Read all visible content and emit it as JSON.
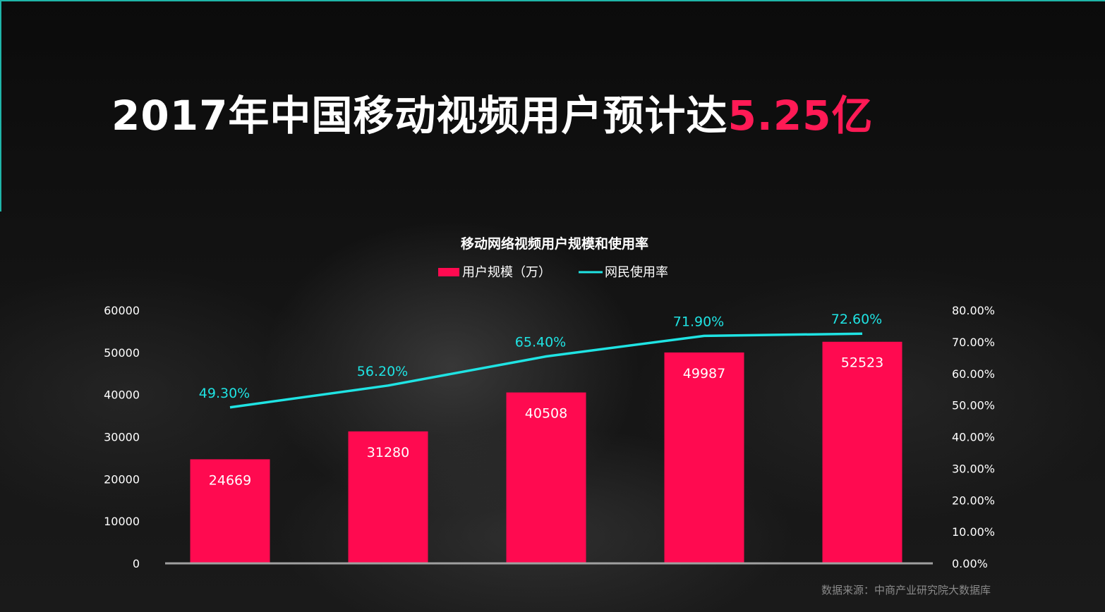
{
  "headline": {
    "main": "2017年中国移动视频用户预计达",
    "highlight": "5.25亿"
  },
  "source": "数据来源：中商产业研究院大数据库",
  "colors": {
    "bar": "#ff0a50",
    "line": "#1fe3e3",
    "accent": "#ff1a55",
    "text": "#ffffff",
    "baseline": "#a0a0a0"
  },
  "chart_data": {
    "type": "bar",
    "title": "移动网络视频用户规模和使用率",
    "legend": [
      "用户规模（万）",
      "网民使用率"
    ],
    "legend_position": "top",
    "categories": [
      "",
      "",
      "",
      "",
      ""
    ],
    "series": [
      {
        "name": "用户规模（万）",
        "type": "bar",
        "axis": "left",
        "values": [
          24669,
          31280,
          40508,
          49987,
          52523
        ],
        "labels": [
          "24669",
          "31280",
          "40508",
          "49987",
          "52523"
        ]
      },
      {
        "name": "网民使用率",
        "type": "line",
        "axis": "right",
        "values": [
          49.3,
          56.2,
          65.4,
          71.9,
          72.6
        ],
        "labels": [
          "49.30%",
          "56.20%",
          "65.40%",
          "71.90%",
          "72.60%"
        ]
      }
    ],
    "y_left": {
      "range": [
        0,
        60000
      ],
      "ticks": [
        "0",
        "10000",
        "20000",
        "30000",
        "40000",
        "50000",
        "60000"
      ]
    },
    "y_right": {
      "range": [
        0,
        80
      ],
      "ticks": [
        "0.00%",
        "10.00%",
        "20.00%",
        "30.00%",
        "40.00%",
        "50.00%",
        "60.00%",
        "70.00%",
        "80.00%"
      ]
    },
    "grid": false
  }
}
